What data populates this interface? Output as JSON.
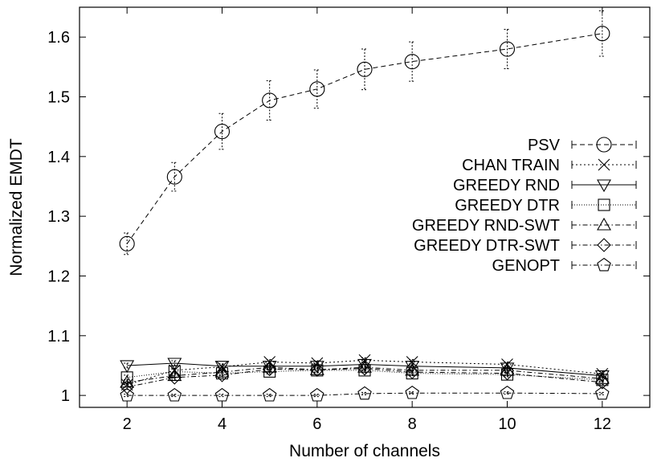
{
  "chart_data": {
    "type": "line",
    "xlabel": "Number of channels",
    "ylabel": "Normalized EMDT",
    "xlim": [
      1,
      13
    ],
    "ylim": [
      0.98,
      1.65
    ],
    "x_ticks": [
      2,
      4,
      6,
      8,
      10,
      12
    ],
    "y_ticks": [
      1,
      1.1,
      1.2,
      1.3,
      1.4,
      1.5,
      1.6
    ],
    "legend_position": "right",
    "grid": false,
    "series": [
      {
        "name": "PSV",
        "marker": "circle",
        "dash": "dashed",
        "x": [
          2,
          3,
          4,
          5,
          6,
          7,
          8,
          10,
          12
        ],
        "y": [
          1.254,
          1.366,
          1.442,
          1.494,
          1.513,
          1.546,
          1.559,
          1.58,
          1.606
        ],
        "error": [
          0.018,
          0.024,
          0.03,
          0.033,
          0.032,
          0.034,
          0.033,
          0.033,
          0.038
        ]
      },
      {
        "name": "CHAN TRAIN",
        "marker": "x",
        "dash": "dotted",
        "x": [
          2,
          3,
          4,
          5,
          6,
          7,
          8,
          10,
          12
        ],
        "y": [
          1.018,
          1.042,
          1.048,
          1.056,
          1.054,
          1.059,
          1.056,
          1.052,
          1.036
        ],
        "error": [
          0.004,
          0.004,
          0.004,
          0.004,
          0.004,
          0.004,
          0.004,
          0.004,
          0.004
        ]
      },
      {
        "name": "GREEDY RND",
        "marker": "triangle-down",
        "dash": "solid",
        "x": [
          2,
          3,
          4,
          5,
          6,
          7,
          8,
          10,
          12
        ],
        "y": [
          1.05,
          1.054,
          1.049,
          1.049,
          1.049,
          1.052,
          1.049,
          1.046,
          1.033
        ],
        "error": [
          0.004,
          0.004,
          0.004,
          0.004,
          0.004,
          0.004,
          0.004,
          0.004,
          0.004
        ]
      },
      {
        "name": "GREEDY DTR",
        "marker": "square",
        "dash": "fine-dotted",
        "x": [
          2,
          3,
          4,
          5,
          6,
          7,
          8,
          10,
          12
        ],
        "y": [
          1.03,
          1.04,
          1.037,
          1.04,
          1.042,
          1.042,
          1.037,
          1.035,
          1.026
        ],
        "error": [
          0.004,
          0.004,
          0.004,
          0.004,
          0.004,
          0.004,
          0.004,
          0.004,
          0.004
        ]
      },
      {
        "name": "GREEDY RND-SWT",
        "marker": "triangle-up",
        "dash": "dash-dot",
        "x": [
          2,
          3,
          4,
          5,
          6,
          7,
          8,
          10,
          12
        ],
        "y": [
          1.022,
          1.033,
          1.039,
          1.047,
          1.043,
          1.047,
          1.042,
          1.042,
          1.028
        ],
        "error": [
          0.004,
          0.004,
          0.004,
          0.004,
          0.004,
          0.004,
          0.004,
          0.004,
          0.004
        ]
      },
      {
        "name": "GREEDY DTR-SWT",
        "marker": "diamond",
        "dash": "dash-dot",
        "x": [
          2,
          3,
          4,
          5,
          6,
          7,
          8,
          10,
          12
        ],
        "y": [
          1.014,
          1.03,
          1.034,
          1.044,
          1.043,
          1.045,
          1.039,
          1.037,
          1.022
        ],
        "error": [
          0.004,
          0.004,
          0.004,
          0.004,
          0.004,
          0.004,
          0.004,
          0.004,
          0.004
        ]
      },
      {
        "name": "GENOPT",
        "marker": "pentagon",
        "dash": "dash-dot",
        "x": [
          2,
          3,
          4,
          5,
          6,
          7,
          8,
          10,
          12
        ],
        "y": [
          1.0,
          1.0,
          1.0,
          1.0,
          1.0,
          1.003,
          1.004,
          1.004,
          1.003
        ],
        "error": [
          0.002,
          0.002,
          0.002,
          0.002,
          0.002,
          0.002,
          0.002,
          0.002,
          0.002
        ]
      }
    ]
  }
}
